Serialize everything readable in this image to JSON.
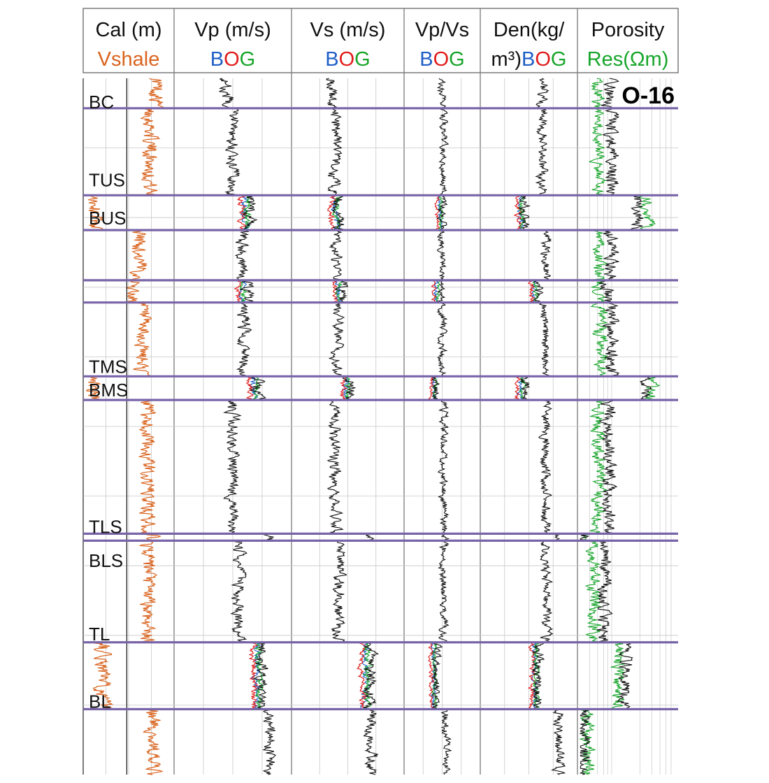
{
  "chart_data": {
    "type": "line",
    "title": "",
    "well_label": "O-16",
    "colors": {
      "frame": "#7a7a7a",
      "grid": "#c8c8c8",
      "boundary": "#7864a8",
      "vshale": "#d9641e",
      "blue": "#1f5fc6",
      "red": "#e11b1b",
      "green": "#17a52a",
      "black": "#111111"
    },
    "tracks": [
      {
        "id": "track-cal-vshale",
        "header_line1": [
          {
            "text": "Cal (m)",
            "color": "#111111"
          }
        ],
        "header_line2": [
          {
            "text": "Vshale",
            "color": "#d9641e"
          }
        ],
        "curves": [
          "Vshale",
          "Cal"
        ]
      },
      {
        "id": "track-vp",
        "header_line1": [
          {
            "text": "Vp (m/s)",
            "color": "#111111"
          }
        ],
        "header_line2": [
          {
            "text": "B",
            "color": "#1f5fc6"
          },
          {
            "text": "O",
            "color": "#e11b1b"
          },
          {
            "text": "G",
            "color": "#17a52a"
          }
        ],
        "curves": [
          "B",
          "O",
          "G",
          "measured"
        ]
      },
      {
        "id": "track-vs",
        "header_line1": [
          {
            "text": "Vs (m/s)",
            "color": "#111111"
          }
        ],
        "header_line2": [
          {
            "text": "B",
            "color": "#1f5fc6"
          },
          {
            "text": "O",
            "color": "#e11b1b"
          },
          {
            "text": "G",
            "color": "#17a52a"
          }
        ],
        "curves": [
          "B",
          "O",
          "G",
          "measured"
        ]
      },
      {
        "id": "track-vpvs",
        "header_line1": [
          {
            "text": "Vp/Vs",
            "color": "#111111"
          }
        ],
        "header_line2": [
          {
            "text": "B",
            "color": "#1f5fc6"
          },
          {
            "text": "O",
            "color": "#e11b1b"
          },
          {
            "text": "G",
            "color": "#17a52a"
          }
        ],
        "curves": [
          "B",
          "O",
          "G",
          "measured"
        ]
      },
      {
        "id": "track-density",
        "header_line1": [
          {
            "text": "Den(kg/",
            "color": "#111111"
          }
        ],
        "header_line2": [
          {
            "text": "m³)",
            "color": "#111111"
          },
          {
            "text": "B",
            "color": "#1f5fc6"
          },
          {
            "text": "O",
            "color": "#e11b1b"
          },
          {
            "text": "G",
            "color": "#17a52a"
          }
        ],
        "curves": [
          "B",
          "O",
          "G",
          "measured"
        ]
      },
      {
        "id": "track-porosity-res",
        "header_line1": [
          {
            "text": "Porosity",
            "color": "#111111"
          }
        ],
        "header_line2": [
          {
            "text": "Res(Ωm)",
            "color": "#17a52a"
          }
        ],
        "curves": [
          "Porosity",
          "Res"
        ]
      }
    ],
    "depth_range": [
      0,
      1
    ],
    "boundaries": [
      0.043,
      0.168,
      0.218,
      0.29,
      0.322,
      0.428,
      0.462,
      0.654,
      0.664,
      0.81,
      0.906
    ],
    "formation_tops": [
      {
        "label": "BC",
        "depth": 0.033
      },
      {
        "label": "TUS",
        "depth": 0.145
      },
      {
        "label": "BUS",
        "depth": 0.2
      },
      {
        "label": "TMS",
        "depth": 0.413
      },
      {
        "label": "BMS",
        "depth": 0.447
      },
      {
        "label": "TLS",
        "depth": 0.643
      },
      {
        "label": "BLS",
        "depth": 0.692
      },
      {
        "label": "TL",
        "depth": 0.797
      },
      {
        "label": "BL",
        "depth": 0.894
      }
    ],
    "zones": [
      {
        "top": 0.0,
        "base": 0.043,
        "vshale": 0.82,
        "vp": 0.45,
        "vs": 0.35,
        "vpvs": 0.5,
        "den": 0.65,
        "por": 0.3,
        "res": 0.2
      },
      {
        "top": 0.043,
        "base": 0.168,
        "vshale": 0.75,
        "vp": 0.5,
        "vs": 0.38,
        "vpvs": 0.52,
        "den": 0.65,
        "por": 0.33,
        "res": 0.2
      },
      {
        "top": 0.168,
        "base": 0.218,
        "vshale": 0.12,
        "vp": 0.65,
        "vs": 0.42,
        "vpvs": 0.5,
        "den": 0.45,
        "por": 0.6,
        "res": 0.7
      },
      {
        "top": 0.218,
        "base": 0.29,
        "vshale": 0.62,
        "vp": 0.58,
        "vs": 0.4,
        "vpvs": 0.5,
        "den": 0.68,
        "por": 0.32,
        "res": 0.2
      },
      {
        "top": 0.29,
        "base": 0.322,
        "vshale": 0.55,
        "vp": 0.62,
        "vs": 0.45,
        "vpvs": 0.46,
        "den": 0.6,
        "por": 0.3,
        "res": 0.2
      },
      {
        "top": 0.322,
        "base": 0.428,
        "vshale": 0.65,
        "vp": 0.6,
        "vs": 0.4,
        "vpvs": 0.5,
        "den": 0.68,
        "por": 0.33,
        "res": 0.22
      },
      {
        "top": 0.428,
        "base": 0.462,
        "vshale": 0.1,
        "vp": 0.72,
        "vs": 0.52,
        "vpvs": 0.42,
        "den": 0.45,
        "por": 0.7,
        "res": 0.75
      },
      {
        "top": 0.462,
        "base": 0.654,
        "vshale": 0.72,
        "vp": 0.5,
        "vs": 0.38,
        "vpvs": 0.52,
        "den": 0.68,
        "por": 0.3,
        "res": 0.2
      },
      {
        "top": 0.664,
        "base": 0.81,
        "vshale": 0.72,
        "vp": 0.55,
        "vs": 0.42,
        "vpvs": 0.52,
        "den": 0.68,
        "por": 0.25,
        "res": 0.15
      },
      {
        "top": 0.81,
        "base": 0.906,
        "vshale": 0.2,
        "vp": 0.75,
        "vs": 0.7,
        "vpvs": 0.42,
        "den": 0.6,
        "por": 0.48,
        "res": 0.4
      },
      {
        "top": 0.906,
        "base": 1.0,
        "vshale": 0.78,
        "vp": 0.82,
        "vs": 0.72,
        "vpvs": 0.55,
        "den": 0.82,
        "por": 0.05,
        "res": 0.08
      }
    ],
    "legend": "none",
    "grid": true
  }
}
